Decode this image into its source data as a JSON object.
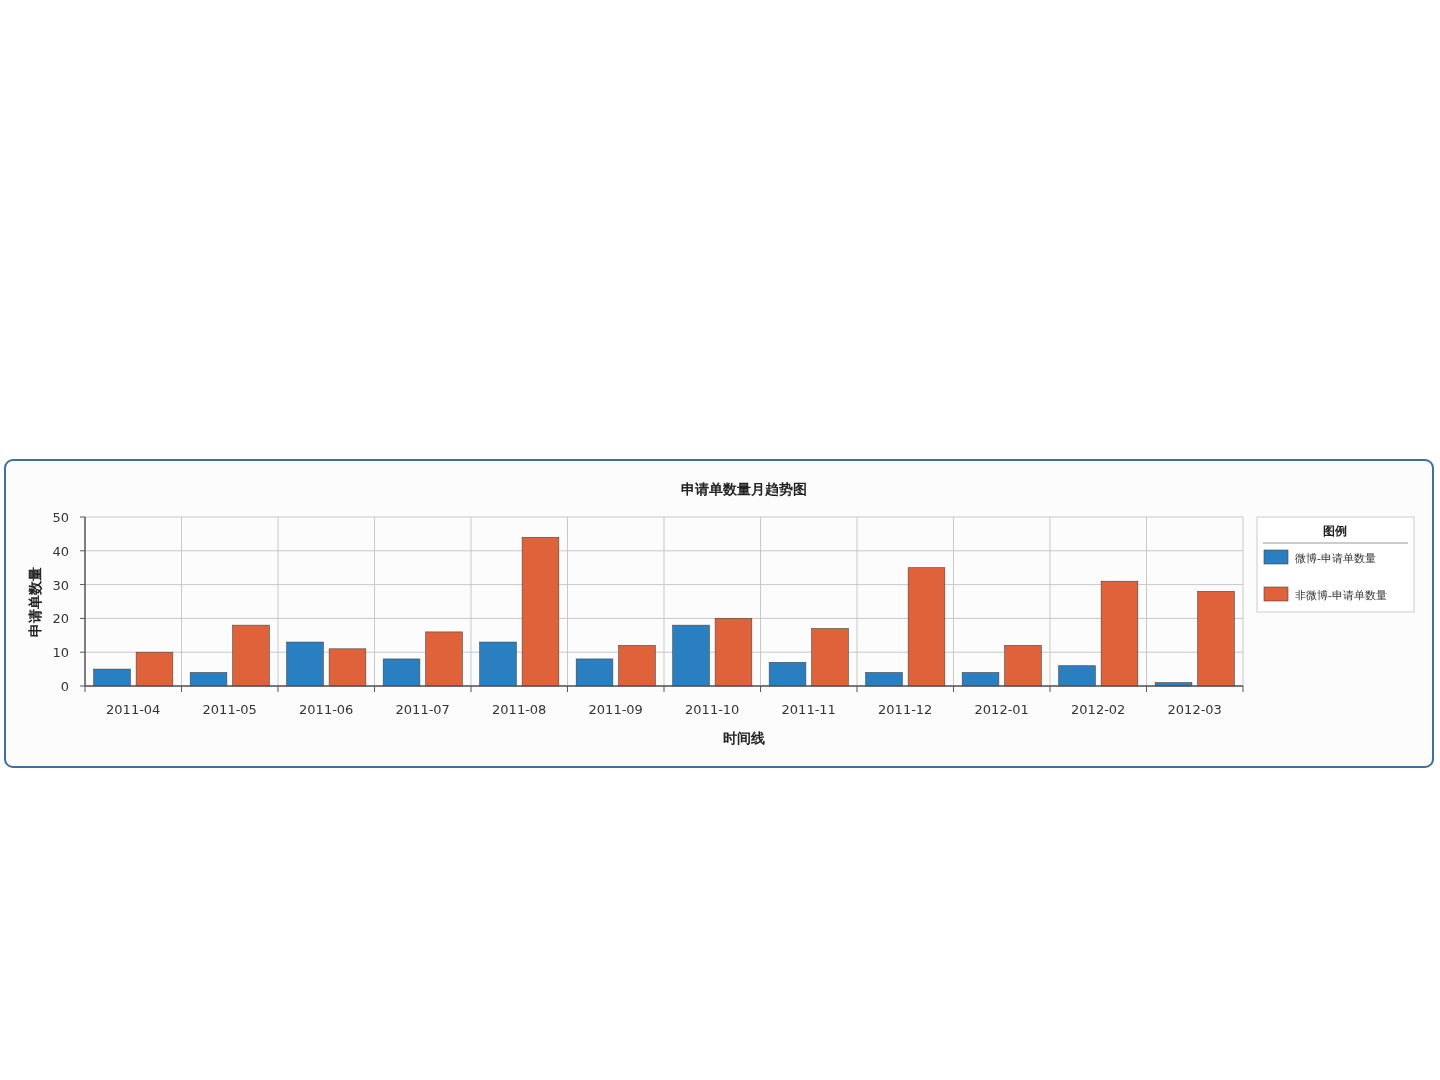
{
  "chart_data": {
    "type": "bar",
    "title": "申请单数量月趋势图",
    "xlabel": "时间线",
    "ylabel": "申请单数量",
    "legend_title": "图例",
    "categories": [
      "2011-04",
      "2011-05",
      "2011-06",
      "2011-07",
      "2011-08",
      "2011-09",
      "2011-10",
      "2011-11",
      "2011-12",
      "2012-01",
      "2012-02",
      "2012-03"
    ],
    "series": [
      {
        "name": "微博-申请单数量",
        "color": "#2a7fc1",
        "values": [
          5,
          4,
          13,
          8,
          13,
          8,
          18,
          7,
          4,
          4,
          6,
          1
        ]
      },
      {
        "name": "非微博-申请单数量",
        "color": "#e0623a",
        "values": [
          10,
          18,
          11,
          16,
          44,
          12,
          20,
          17,
          35,
          12,
          31,
          28
        ]
      }
    ],
    "ylim": [
      0,
      50
    ],
    "yticks": [
      0,
      10,
      20,
      30,
      40,
      50
    ],
    "grid": true,
    "legend": "right"
  }
}
